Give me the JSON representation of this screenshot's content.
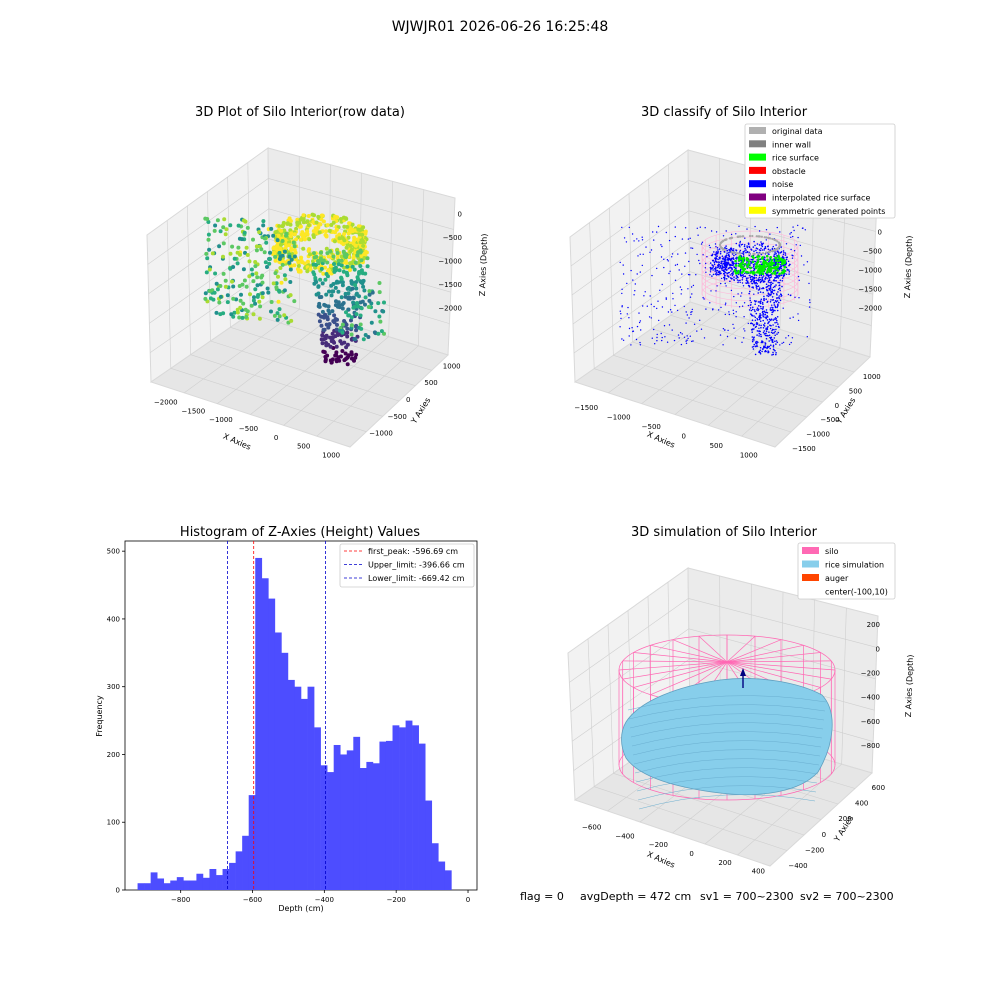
{
  "suptitle": "WJWJR01 2026-06-26 16:25:48",
  "footer": {
    "flag": "flag = 0",
    "avg_depth": "avgDepth = 472 cm",
    "sv1": "sv1 = 700~2300",
    "sv2": "sv2 = 700~2300"
  },
  "chart_data": [
    {
      "type": "scatter3d",
      "title": "3D Plot of Silo Interior(row data)",
      "xlabel": "X Axies",
      "ylabel": "Y Axies",
      "zlabel": "Z Axies (Depth)",
      "x_ticks": [
        "−2000",
        "−1500",
        "−1000",
        "−500",
        "0",
        "500",
        "1000"
      ],
      "y_ticks": [
        "−1000",
        "−500",
        "0",
        "500",
        "1000"
      ],
      "z_ticks": [
        "0",
        "−500",
        "−1000",
        "−1500",
        "−2000"
      ],
      "colormap": "viridis"
    },
    {
      "type": "scatter3d",
      "title": "3D classify of Silo Interior",
      "x_ticks": [
        "−1500",
        "−1000",
        "−500",
        "0",
        "500",
        "1000"
      ],
      "y_ticks": [
        "−1500",
        "−1000",
        "−500",
        "0",
        "500",
        "1000"
      ],
      "z_ticks": [
        "0",
        "−500",
        "−1000",
        "−1500",
        "−2000"
      ],
      "z_tick_partial": "00",
      "xlabel": "X Axies",
      "ylabel": "Y Axies",
      "zlabel": "Z Axies (Depth)",
      "legend": [
        {
          "label": "original data",
          "color": "#b0b0b0"
        },
        {
          "label": "inner wall",
          "color": "#808080"
        },
        {
          "label": "rice surface",
          "color": "#00ff00"
        },
        {
          "label": "obstacle",
          "color": "#ff0000"
        },
        {
          "label": "noise",
          "color": "#0000ff"
        },
        {
          "label": "interpolated rice surface",
          "color": "#800080"
        },
        {
          "label": "symmetric generated points",
          "color": "#ffff00"
        }
      ]
    },
    {
      "type": "bar",
      "title": "Histogram of Z-Axies (Height) Values",
      "xlabel": "Depth (cm)",
      "ylabel": "Frequency",
      "xlim": [
        -955,
        25
      ],
      "ylim": [
        0,
        515
      ],
      "x_ticks": [
        {
          "value": -800,
          "label": "−800"
        },
        {
          "value": -600,
          "label": "−600"
        },
        {
          "value": -400,
          "label": "−400"
        },
        {
          "value": -200,
          "label": "−200"
        },
        {
          "value": 0,
          "label": "0"
        }
      ],
      "y_ticks": [
        0,
        100,
        200,
        300,
        400,
        500
      ],
      "bar_color": "#4d4dff",
      "bin_start": -920,
      "bin_width": 18.2,
      "values": [
        10,
        10,
        26,
        17,
        10,
        14,
        19,
        14,
        14,
        24,
        18,
        31,
        22,
        31,
        40,
        57,
        80,
        140,
        490,
        460,
        430,
        380,
        350,
        310,
        300,
        282,
        300,
        240,
        184,
        174,
        214,
        200,
        206,
        226,
        180,
        189,
        187,
        219,
        220,
        243,
        240,
        250,
        243,
        216,
        132,
        69,
        42,
        29
      ],
      "lines": [
        {
          "label": "first_peak: -596.69 cm",
          "x": -596.69,
          "color": "#ff0000"
        },
        {
          "label": "Upper_limit: -396.66 cm",
          "x": -396.66,
          "color": "#0000cc"
        },
        {
          "label": "Lower_limit: -669.42 cm",
          "x": -669.42,
          "color": "#0000cc"
        }
      ]
    },
    {
      "type": "surface3d",
      "title": "3D simulation of Silo Interior",
      "xlabel": "X Axies",
      "ylabel": "Y Axies",
      "zlabel": "Z Axies (Depth)",
      "x_ticks": [
        "−600",
        "−400",
        "−200",
        "0",
        "200",
        "400"
      ],
      "y_ticks": [
        "−400",
        "−200",
        "0",
        "200",
        "400",
        "600"
      ],
      "z_ticks": [
        "200",
        "0",
        "−200",
        "−400",
        "−600",
        "−800"
      ],
      "legend": [
        {
          "label": "silo",
          "color": "#ff69b4"
        },
        {
          "label": "rice simulation",
          "color": "#87ceeb"
        },
        {
          "label": "auger",
          "color": "#ff4500"
        },
        {
          "label": "center(-100,10)",
          "color": ""
        }
      ]
    }
  ]
}
